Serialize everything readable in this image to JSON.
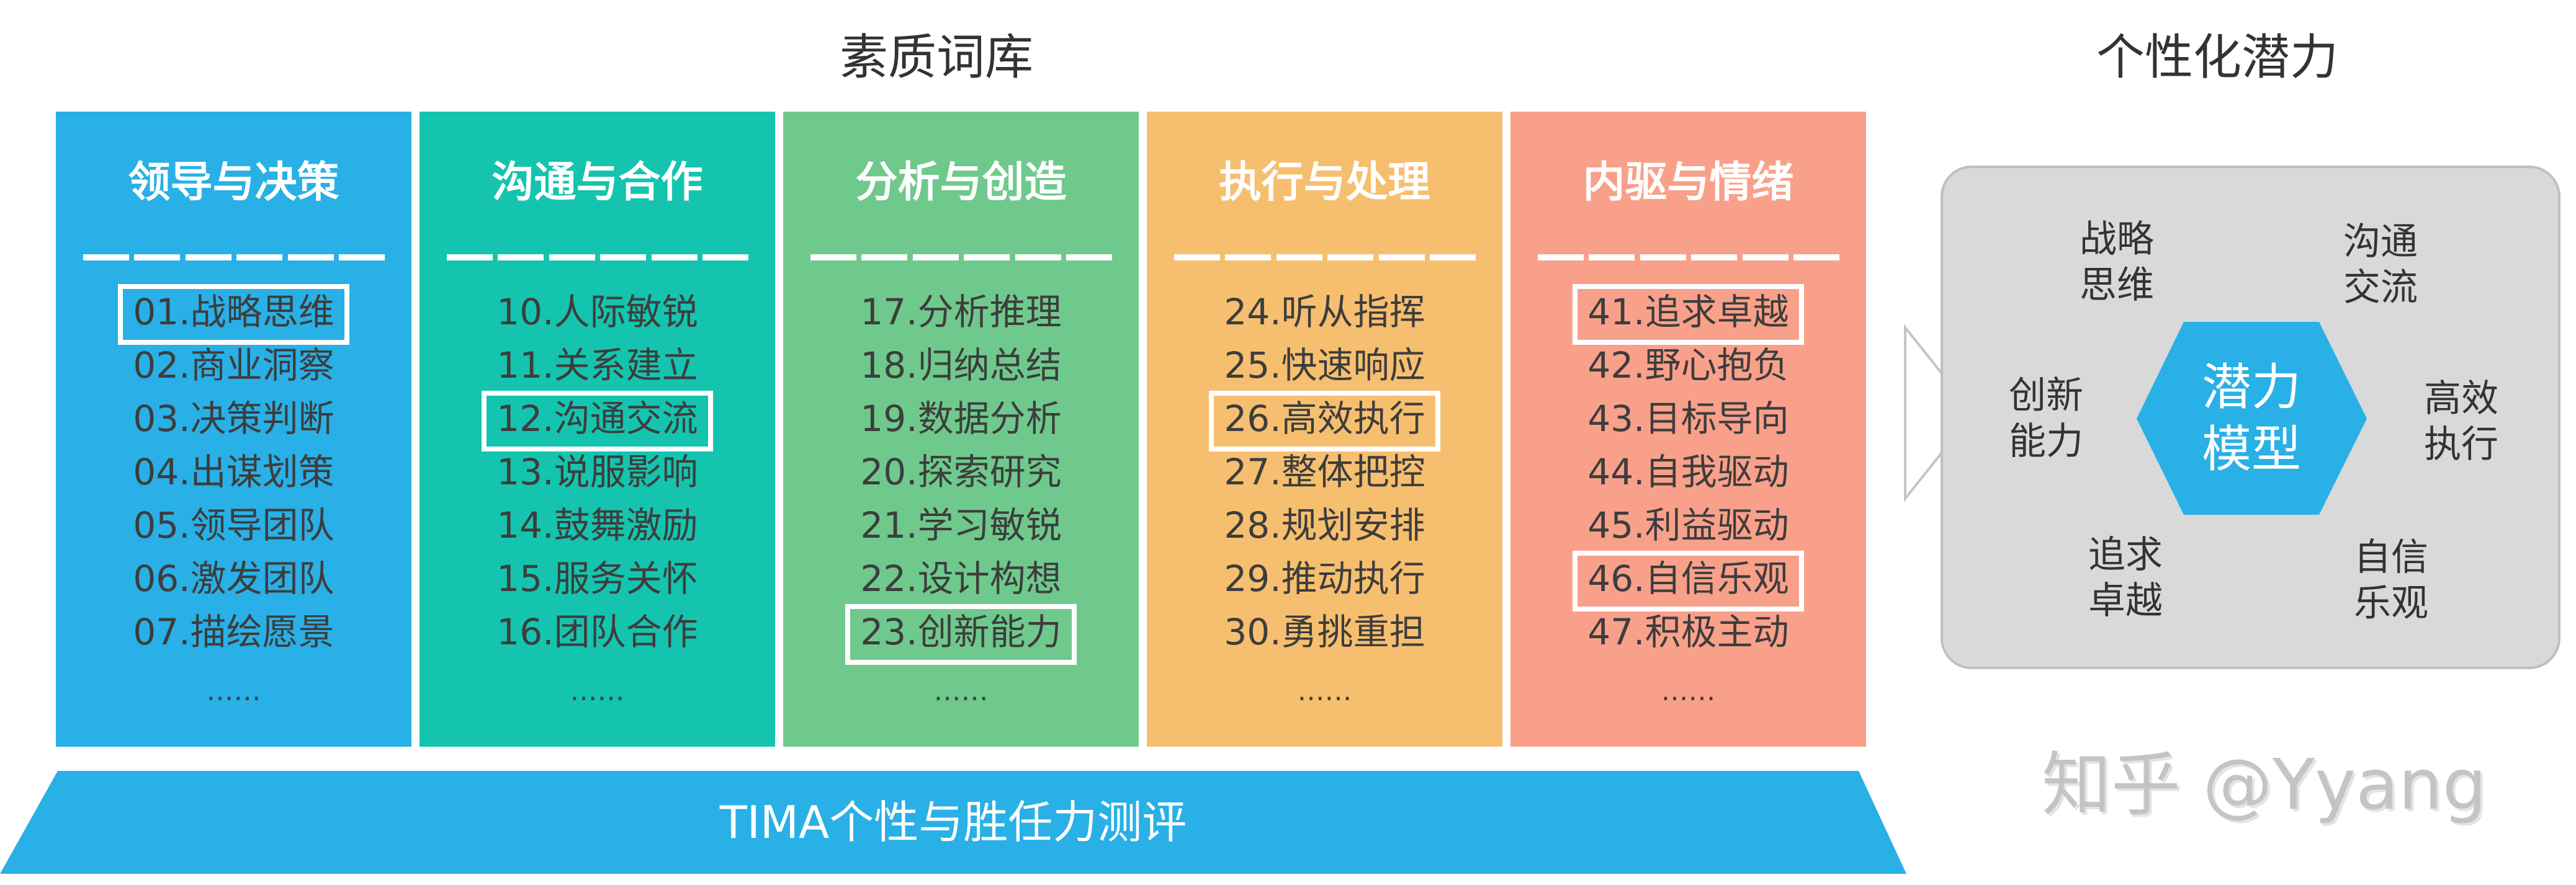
{
  "titles": {
    "left": "素质词库",
    "right": "个性化潜力"
  },
  "colors": {
    "leadership": "#29b0e6",
    "communication": "#14c4ae",
    "analysis": "#6fc98c",
    "execution": "#f6bf6f",
    "drive": "#f9a08a",
    "banner": "#29b0e6",
    "hexagon": "#29b0e6",
    "panel": "#d9d9d9"
  },
  "columns": [
    {
      "heading": "领导与决策",
      "items": [
        {
          "label": "01.战略思维",
          "highlighted": true
        },
        {
          "label": "02.商业洞察",
          "highlighted": false
        },
        {
          "label": "03.决策判断",
          "highlighted": false
        },
        {
          "label": "04.出谋划策",
          "highlighted": false
        },
        {
          "label": "05.领导团队",
          "highlighted": false
        },
        {
          "label": "06.激发团队",
          "highlighted": false
        },
        {
          "label": "07.描绘愿景",
          "highlighted": false
        }
      ],
      "more": "……"
    },
    {
      "heading": "沟通与合作",
      "items": [
        {
          "label": "10.人际敏锐",
          "highlighted": false
        },
        {
          "label": "11.关系建立",
          "highlighted": false
        },
        {
          "label": "12.沟通交流",
          "highlighted": true
        },
        {
          "label": "13.说服影响",
          "highlighted": false
        },
        {
          "label": "14.鼓舞激励",
          "highlighted": false
        },
        {
          "label": "15.服务关怀",
          "highlighted": false
        },
        {
          "label": "16.团队合作",
          "highlighted": false
        }
      ],
      "more": "……"
    },
    {
      "heading": "分析与创造",
      "items": [
        {
          "label": "17.分析推理",
          "highlighted": false
        },
        {
          "label": "18.归纳总结",
          "highlighted": false
        },
        {
          "label": "19.数据分析",
          "highlighted": false
        },
        {
          "label": "20.探索研究",
          "highlighted": false
        },
        {
          "label": "21.学习敏锐",
          "highlighted": false
        },
        {
          "label": "22.设计构想",
          "highlighted": false
        },
        {
          "label": "23.创新能力",
          "highlighted": true
        }
      ],
      "more": "……"
    },
    {
      "heading": "执行与处理",
      "items": [
        {
          "label": "24.听从指挥",
          "highlighted": false
        },
        {
          "label": "25.快速响应",
          "highlighted": false
        },
        {
          "label": "26.高效执行",
          "highlighted": true
        },
        {
          "label": "27.整体把控",
          "highlighted": false
        },
        {
          "label": "28.规划安排",
          "highlighted": false
        },
        {
          "label": "29.推动执行",
          "highlighted": false
        },
        {
          "label": "30.勇挑重担",
          "highlighted": false
        }
      ],
      "more": "……"
    },
    {
      "heading": "内驱与情绪",
      "items": [
        {
          "label": "41.追求卓越",
          "highlighted": true
        },
        {
          "label": "42.野心抱负",
          "highlighted": false
        },
        {
          "label": "43.目标导向",
          "highlighted": false
        },
        {
          "label": "44.自我驱动",
          "highlighted": false
        },
        {
          "label": "45.利益驱动",
          "highlighted": false
        },
        {
          "label": "46.自信乐观",
          "highlighted": true
        },
        {
          "label": "47.积极主动",
          "highlighted": false
        }
      ],
      "more": "……"
    }
  ],
  "banner": "TIMA个性与胜任力测评",
  "model": {
    "center": [
      "潜力",
      "模型"
    ],
    "traits": [
      [
        "战略",
        "思维"
      ],
      [
        "沟通",
        "交流"
      ],
      [
        "创新",
        "能力"
      ],
      [
        "高效",
        "执行"
      ],
      [
        "追求",
        "卓越"
      ],
      [
        "自信",
        "乐观"
      ]
    ]
  },
  "watermark": "知乎 @Yyang"
}
